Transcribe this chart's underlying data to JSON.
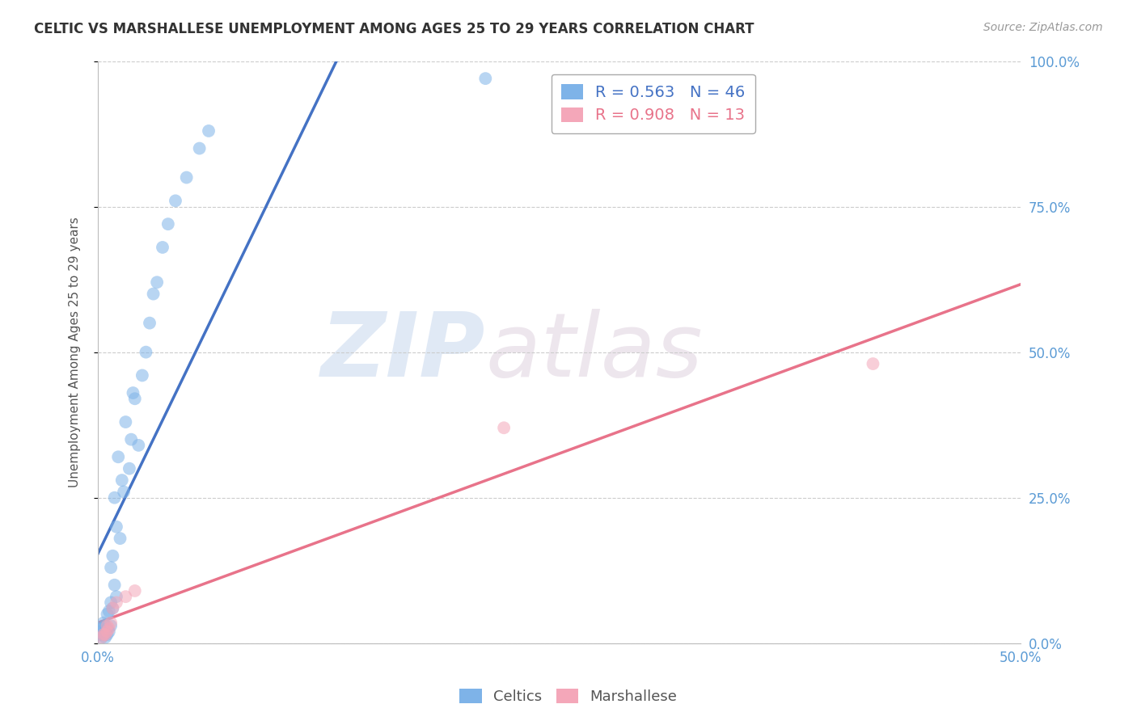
{
  "title": "CELTIC VS MARSHALLESE UNEMPLOYMENT AMONG AGES 25 TO 29 YEARS CORRELATION CHART",
  "source": "Source: ZipAtlas.com",
  "ylabel": "Unemployment Among Ages 25 to 29 years",
  "xlim": [
    0.0,
    0.5
  ],
  "ylim": [
    0.0,
    1.0
  ],
  "xticks": [
    0.0,
    0.1,
    0.2,
    0.3,
    0.4,
    0.5
  ],
  "xticklabels": [
    "0.0%",
    "",
    "",
    "",
    "",
    "50.0%"
  ],
  "yticks": [
    0.0,
    0.25,
    0.5,
    0.75,
    1.0
  ],
  "yticklabels": [
    "0.0%",
    "25.0%",
    "50.0%",
    "75.0%",
    "100.0%"
  ],
  "celtics_color": "#7EB3E8",
  "marshallese_color": "#F4A7B9",
  "celtics_line_color": "#4472C4",
  "marshallese_line_color": "#E8738A",
  "legend_R_celtics": "R = 0.563",
  "legend_N_celtics": "N = 46",
  "legend_R_marshallese": "R = 0.908",
  "legend_N_marshallese": "N = 13",
  "celtics_x": [
    0.001,
    0.001,
    0.002,
    0.002,
    0.003,
    0.003,
    0.003,
    0.004,
    0.004,
    0.004,
    0.005,
    0.005,
    0.005,
    0.006,
    0.006,
    0.007,
    0.007,
    0.007,
    0.008,
    0.008,
    0.009,
    0.009,
    0.01,
    0.01,
    0.011,
    0.012,
    0.013,
    0.014,
    0.015,
    0.017,
    0.018,
    0.019,
    0.02,
    0.022,
    0.024,
    0.026,
    0.028,
    0.03,
    0.032,
    0.035,
    0.038,
    0.042,
    0.048,
    0.055,
    0.06,
    0.21
  ],
  "celtics_y": [
    0.015,
    0.025,
    0.01,
    0.02,
    0.015,
    0.025,
    0.035,
    0.01,
    0.02,
    0.03,
    0.015,
    0.025,
    0.05,
    0.02,
    0.055,
    0.03,
    0.07,
    0.13,
    0.06,
    0.15,
    0.1,
    0.25,
    0.08,
    0.2,
    0.32,
    0.18,
    0.28,
    0.26,
    0.38,
    0.3,
    0.35,
    0.43,
    0.42,
    0.34,
    0.46,
    0.5,
    0.55,
    0.6,
    0.62,
    0.68,
    0.72,
    0.76,
    0.8,
    0.85,
    0.88,
    0.97
  ],
  "marshallese_x": [
    0.002,
    0.003,
    0.004,
    0.005,
    0.005,
    0.006,
    0.007,
    0.008,
    0.01,
    0.015,
    0.02,
    0.22,
    0.42
  ],
  "marshallese_y": [
    0.01,
    0.015,
    0.015,
    0.02,
    0.03,
    0.025,
    0.035,
    0.06,
    0.07,
    0.08,
    0.09,
    0.37,
    0.48
  ],
  "background_color": "#FFFFFF",
  "grid_color": "#CCCCCC",
  "marker_size": 130,
  "marker_alpha": 0.55,
  "watermark_zip": "ZIP",
  "watermark_atlas": "atlas",
  "watermark_color_zip": "#C8D8EE",
  "watermark_color_atlas": "#D8C8D8",
  "tick_color": "#5B9BD5",
  "title_color": "#333333",
  "source_color": "#999999",
  "ylabel_color": "#555555"
}
